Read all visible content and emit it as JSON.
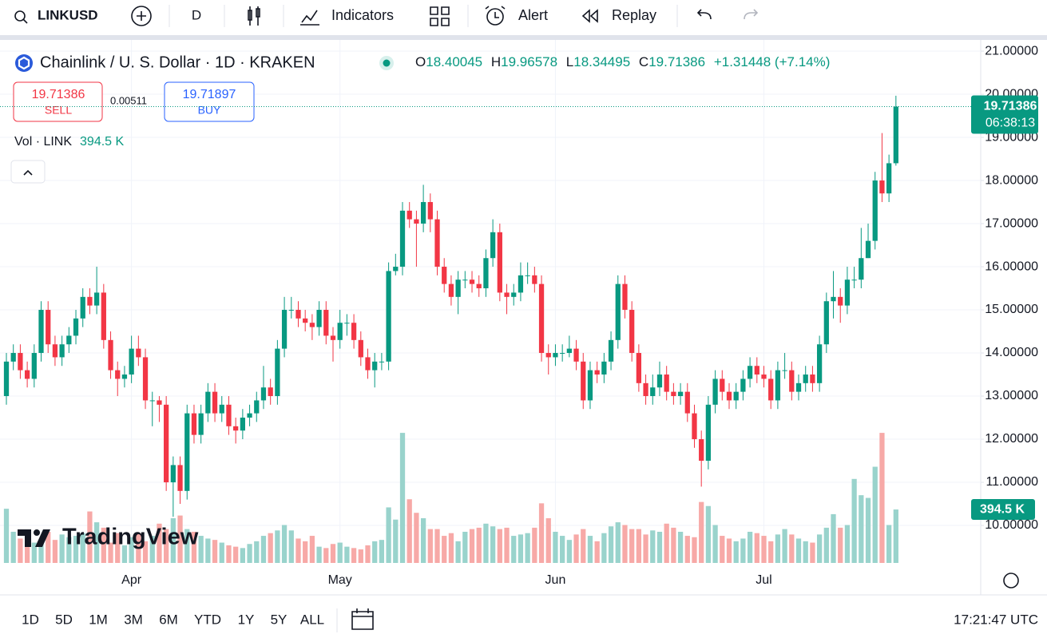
{
  "toolbar": {
    "symbol": "LINKUSD",
    "interval": "D",
    "indicators": "Indicators",
    "alert": "Alert",
    "replay": "Replay"
  },
  "legend": {
    "title": "Chainlink / U. S. Dollar · 1D · KRAKEN",
    "ohlc_labels": [
      "O",
      "H",
      "L",
      "C"
    ],
    "change": "+1.31448 (+7.14%)"
  },
  "trade": {
    "sell_label": "SELL",
    "buy_label": "BUY",
    "buy": "19.71897",
    "spread": "0.00511"
  },
  "volume_legend": {
    "title": "Vol · LINK"
  },
  "countdown": "06:38:13",
  "logo": "TradingView",
  "ranges": [
    "1D",
    "5D",
    "1M",
    "3M",
    "6M",
    "YTD",
    "1Y",
    "5Y",
    "ALL"
  ],
  "clock": "17:21:47 UTC",
  "chart_data": {
    "type": "candlestick",
    "up_color": "#089981",
    "down_color": "#f23645",
    "volume_up_color": "#99d3cc",
    "volume_down_color": "#f7a9a7",
    "xlim": [
      -0.92,
      140.2
    ],
    "xticks": [
      {
        "value": 18,
        "label": "Apr"
      },
      {
        "value": 48,
        "label": "May"
      },
      {
        "value": 79,
        "label": "Jun"
      },
      {
        "value": 109,
        "label": "Jul"
      }
    ],
    "ylim": [
      9.13,
      21.26
    ],
    "yticks": [
      {
        "value": 10,
        "label": "10.00000"
      },
      {
        "value": 11,
        "label": "11.00000"
      },
      {
        "value": 12,
        "label": "12.00000"
      },
      {
        "value": 13,
        "label": "13.00000"
      },
      {
        "value": 14,
        "label": "14.00000"
      },
      {
        "value": 15,
        "label": "15.00000"
      },
      {
        "value": 16,
        "label": "16.00000"
      },
      {
        "value": 17,
        "label": "17.00000"
      },
      {
        "value": 18,
        "label": "18.00000"
      },
      {
        "value": 19,
        "label": "19.00000"
      },
      {
        "value": 20,
        "label": "20.00000"
      },
      {
        "value": 21,
        "label": "21.00000"
      }
    ],
    "volume_lim": [
      0,
      3860
    ],
    "grid": true,
    "open": [
      13.0,
      13.8,
      14.0,
      13.6,
      13.4,
      14.0,
      15.0,
      14.2,
      13.9,
      14.2,
      14.4,
      14.8,
      15.3,
      15.1,
      15.4,
      14.3,
      13.6,
      13.4,
      13.5,
      14.1,
      13.9,
      12.9,
      12.9,
      12.8,
      11.0,
      11.4,
      10.8,
      12.6,
      12.1,
      12.6,
      13.1,
      12.6,
      12.8,
      12.3,
      12.2,
      12.5,
      12.6,
      12.9,
      13.2,
      13.0,
      14.1,
      15.0,
      15.0,
      14.8,
      14.7,
      14.6,
      15.0,
      14.4,
      14.3,
      14.7,
      14.7,
      14.3,
      13.9,
      13.6,
      13.8,
      13.8,
      15.9,
      16.0,
      17.3,
      17.1,
      17.0,
      17.5,
      17.1,
      16.0,
      15.6,
      15.3,
      15.7,
      15.7,
      15.6,
      15.5,
      16.2,
      16.8,
      15.4,
      15.3,
      15.4,
      15.8,
      15.8,
      15.6,
      14.0,
      13.9,
      14.0,
      14.0,
      14.1,
      13.8,
      12.9,
      13.6,
      13.5,
      13.8,
      14.3,
      15.6,
      15.0,
      14.0,
      13.3,
      13.0,
      13.2,
      13.5,
      13.1,
      13.0,
      13.1,
      12.6,
      12.0,
      11.5,
      12.8,
      13.4,
      13.1,
      12.9,
      13.1,
      13.4,
      13.7,
      13.5,
      13.4,
      12.9,
      13.6,
      13.6,
      13.1,
      13.3,
      13.5,
      13.3,
      14.2,
      15.2,
      15.3,
      15.1,
      15.7,
      15.7,
      16.2,
      16.6,
      18.0,
      17.7,
      18.40045
    ],
    "high": [
      14.0,
      14.2,
      14.2,
      13.8,
      14.2,
      15.2,
      15.2,
      14.4,
      14.4,
      14.6,
      15.0,
      15.5,
      15.5,
      16.0,
      15.6,
      14.5,
      13.8,
      13.7,
      14.4,
      14.4,
      14.1,
      13.1,
      13.0,
      13.0,
      11.6,
      11.6,
      12.8,
      12.8,
      12.8,
      13.3,
      13.3,
      13.0,
      13.0,
      12.5,
      12.7,
      12.8,
      13.1,
      13.7,
      13.4,
      14.3,
      15.3,
      15.3,
      15.2,
      15.0,
      14.9,
      15.2,
      15.2,
      14.6,
      15.0,
      14.9,
      14.9,
      14.5,
      14.1,
      14.0,
      14.0,
      16.1,
      16.3,
      17.5,
      17.5,
      17.3,
      17.9,
      17.7,
      17.3,
      16.2,
      15.8,
      15.9,
      15.9,
      15.9,
      15.8,
      16.4,
      17.1,
      17.0,
      15.6,
      15.6,
      16.1,
      16.1,
      16.0,
      15.8,
      14.2,
      14.2,
      14.2,
      14.4,
      14.3,
      14.0,
      13.8,
      13.8,
      14.0,
      14.5,
      15.8,
      15.8,
      15.2,
      14.2,
      13.5,
      13.5,
      13.8,
      13.7,
      13.3,
      13.3,
      13.3,
      12.8,
      12.2,
      13.0,
      13.6,
      13.6,
      13.3,
      13.3,
      13.6,
      13.9,
      13.9,
      13.7,
      13.6,
      13.8,
      14.0,
      13.8,
      13.5,
      13.7,
      13.7,
      14.4,
      15.4,
      15.9,
      15.5,
      16.0,
      16.0,
      16.9,
      17.0,
      18.2,
      19.1,
      18.6,
      19.96578
    ],
    "low": [
      12.8,
      13.6,
      13.4,
      13.2,
      13.2,
      13.8,
      14.0,
      13.7,
      13.7,
      14.0,
      14.2,
      14.6,
      14.9,
      14.9,
      14.1,
      13.4,
      13.0,
      13.2,
      13.3,
      13.7,
      12.7,
      12.3,
      12.4,
      10.8,
      10.2,
      10.5,
      10.6,
      11.9,
      11.9,
      12.4,
      12.4,
      12.4,
      12.1,
      11.9,
      12.0,
      12.3,
      12.4,
      12.7,
      12.8,
      12.8,
      13.9,
      14.8,
      14.6,
      14.5,
      14.3,
      14.4,
      14.2,
      13.8,
      14.1,
      14.4,
      14.1,
      13.7,
      13.4,
      13.2,
      13.6,
      13.6,
      15.8,
      15.8,
      16.9,
      16.0,
      16.8,
      16.8,
      15.8,
      15.4,
      15.1,
      14.9,
      15.5,
      15.4,
      15.3,
      15.3,
      16.0,
      15.2,
      14.9,
      15.1,
      15.2,
      15.6,
      15.4,
      13.8,
      13.5,
      13.7,
      13.8,
      13.9,
      13.6,
      12.7,
      12.7,
      13.3,
      13.3,
      13.6,
      14.1,
      14.8,
      13.8,
      13.1,
      12.8,
      12.8,
      13.0,
      12.9,
      12.8,
      12.8,
      12.4,
      11.8,
      10.9,
      11.3,
      12.6,
      12.9,
      12.7,
      12.7,
      12.9,
      13.2,
      13.3,
      13.2,
      12.7,
      12.7,
      13.4,
      12.9,
      12.9,
      13.1,
      13.1,
      13.1,
      14.0,
      14.8,
      14.7,
      14.9,
      15.5,
      15.5,
      16.2,
      16.4,
      17.5,
      17.5,
      18.34495
    ],
    "close": [
      13.8,
      14.0,
      13.6,
      13.4,
      14.0,
      15.0,
      14.2,
      13.9,
      14.2,
      14.4,
      14.8,
      15.3,
      15.1,
      15.4,
      14.3,
      13.6,
      13.4,
      13.5,
      14.1,
      13.9,
      12.9,
      12.9,
      12.8,
      11.0,
      11.4,
      10.8,
      12.6,
      12.1,
      12.6,
      13.1,
      12.6,
      12.8,
      12.3,
      12.2,
      12.5,
      12.6,
      12.9,
      13.2,
      13.0,
      14.1,
      15.0,
      15.0,
      14.8,
      14.7,
      14.6,
      15.0,
      14.4,
      14.3,
      14.7,
      14.7,
      14.3,
      13.9,
      13.6,
      13.8,
      13.8,
      15.9,
      16.0,
      17.3,
      17.1,
      17.0,
      17.5,
      17.1,
      16.0,
      15.6,
      15.3,
      15.7,
      15.7,
      15.6,
      15.5,
      16.2,
      16.8,
      15.4,
      15.3,
      15.4,
      15.8,
      15.8,
      15.6,
      14.0,
      13.9,
      14.0,
      14.0,
      14.1,
      13.8,
      12.9,
      13.6,
      13.5,
      13.8,
      14.3,
      15.6,
      15.0,
      14.0,
      13.3,
      13.0,
      13.2,
      13.5,
      13.1,
      13.0,
      13.1,
      12.6,
      12.0,
      11.5,
      12.8,
      13.4,
      13.1,
      12.9,
      13.1,
      13.4,
      13.7,
      13.5,
      13.4,
      12.9,
      13.6,
      13.6,
      13.1,
      13.3,
      13.5,
      13.3,
      14.2,
      15.2,
      15.3,
      15.1,
      15.7,
      15.7,
      16.2,
      16.6,
      18.0,
      17.7,
      18.4,
      19.71386
    ],
    "volume": [
      400,
      230,
      180,
      200,
      150,
      160,
      230,
      170,
      210,
      190,
      200,
      220,
      380,
      300,
      260,
      150,
      220,
      130,
      190,
      220,
      160,
      200,
      290,
      250,
      330,
      350,
      250,
      230,
      200,
      180,
      170,
      150,
      130,
      120,
      110,
      140,
      160,
      200,
      220,
      240,
      280,
      240,
      180,
      160,
      200,
      120,
      110,
      140,
      150,
      120,
      110,
      100,
      130,
      160,
      170,
      410,
      320,
      960,
      470,
      370,
      330,
      250,
      250,
      200,
      220,
      160,
      230,
      250,
      260,
      290,
      270,
      250,
      260,
      200,
      210,
      220,
      260,
      440,
      330,
      230,
      200,
      170,
      210,
      250,
      200,
      160,
      220,
      270,
      300,
      280,
      250,
      250,
      210,
      240,
      230,
      290,
      260,
      230,
      200,
      190,
      450,
      420,
      280,
      200,
      180,
      160,
      180,
      230,
      220,
      200,
      160,
      210,
      250,
      210,
      180,
      160,
      150,
      210,
      260,
      360,
      260,
      280,
      620,
      500,
      480,
      710,
      960,
      280,
      394.5
    ],
    "last_volume_label": "394.5 K"
  }
}
